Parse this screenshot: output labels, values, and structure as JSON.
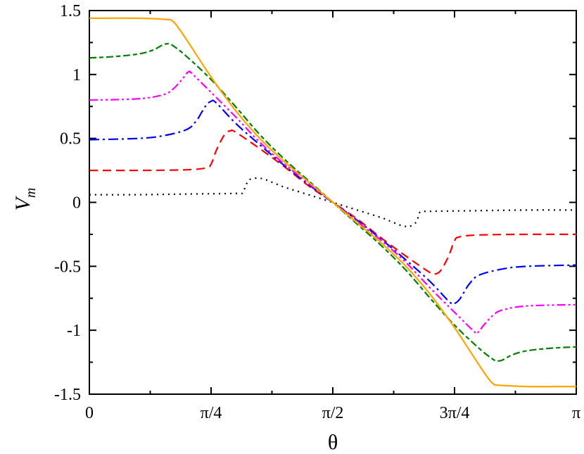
{
  "chart_data": {
    "type": "line",
    "title": "",
    "xlabel": "θ",
    "ylabel_main": "V",
    "ylabel_sub": "m",
    "xlim": [
      0,
      1
    ],
    "ylim": [
      -1.5,
      1.5
    ],
    "x_unit": "π",
    "xticks": [
      {
        "value": 0,
        "label": "0"
      },
      {
        "value": 0.25,
        "label": "π/4"
      },
      {
        "value": 0.5,
        "label": "π/2"
      },
      {
        "value": 0.75,
        "label": "3π/4"
      },
      {
        "value": 1,
        "label": "π"
      }
    ],
    "yticks": [
      {
        "value": 1.5,
        "label": "1.5"
      },
      {
        "value": 1,
        "label": "1"
      },
      {
        "value": 0.5,
        "label": "0.5"
      },
      {
        "value": 0,
        "label": "0"
      },
      {
        "value": -0.5,
        "label": "-0.5"
      },
      {
        "value": -1,
        "label": "-1"
      },
      {
        "value": -1.5,
        "label": "-1.5"
      }
    ],
    "series": [
      {
        "name": "dotted-black",
        "color": "#000000",
        "dash": "2,6",
        "x": [
          0,
          0.1,
          0.2,
          0.3,
          0.315,
          0.32,
          0.325,
          0.33,
          0.345,
          0.36,
          0.38,
          0.4,
          0.45,
          0.5,
          0.55,
          0.6,
          0.62,
          0.64,
          0.655,
          0.66,
          0.67,
          0.675,
          0.68,
          0.7,
          0.8,
          0.9,
          1.0
        ],
        "y": [
          0.06,
          0.06,
          0.065,
          0.07,
          0.075,
          0.12,
          0.16,
          0.18,
          0.19,
          0.18,
          0.15,
          0.12,
          0.06,
          0.0,
          -0.06,
          -0.12,
          -0.15,
          -0.18,
          -0.19,
          -0.185,
          -0.16,
          -0.12,
          -0.075,
          -0.07,
          -0.065,
          -0.06,
          -0.06
        ]
      },
      {
        "name": "dashed-red",
        "color": "#ff0000",
        "dash": "12,7",
        "x": [
          0,
          0.1,
          0.2,
          0.24,
          0.25,
          0.26,
          0.27,
          0.28,
          0.29,
          0.3,
          0.35,
          0.4,
          0.45,
          0.5,
          0.55,
          0.6,
          0.65,
          0.7,
          0.71,
          0.72,
          0.73,
          0.74,
          0.75,
          0.76,
          0.8,
          0.9,
          1.0
        ],
        "y": [
          0.25,
          0.25,
          0.255,
          0.27,
          0.3,
          0.4,
          0.48,
          0.54,
          0.56,
          0.55,
          0.42,
          0.28,
          0.13,
          0.0,
          -0.13,
          -0.28,
          -0.42,
          -0.55,
          -0.56,
          -0.54,
          -0.48,
          -0.4,
          -0.3,
          -0.27,
          -0.255,
          -0.25,
          -0.25
        ]
      },
      {
        "name": "dashdot-blue",
        "color": "#0000ff",
        "dash": "14,5,3,5",
        "x": [
          0,
          0.1,
          0.15,
          0.2,
          0.22,
          0.23,
          0.24,
          0.25,
          0.26,
          0.3,
          0.35,
          0.4,
          0.45,
          0.5,
          0.55,
          0.6,
          0.65,
          0.7,
          0.74,
          0.75,
          0.76,
          0.77,
          0.78,
          0.8,
          0.85,
          0.9,
          1.0
        ],
        "y": [
          0.49,
          0.5,
          0.52,
          0.57,
          0.64,
          0.7,
          0.76,
          0.79,
          0.78,
          0.62,
          0.45,
          0.29,
          0.14,
          0.0,
          -0.14,
          -0.29,
          -0.45,
          -0.62,
          -0.78,
          -0.79,
          -0.76,
          -0.7,
          -0.64,
          -0.57,
          -0.52,
          -0.5,
          -0.49
        ]
      },
      {
        "name": "dashdotdot-magenta",
        "color": "#ff00ff",
        "dash": "12,4,3,4,3,4",
        "x": [
          0,
          0.1,
          0.15,
          0.17,
          0.19,
          0.2,
          0.205,
          0.21,
          0.25,
          0.3,
          0.35,
          0.4,
          0.45,
          0.5,
          0.55,
          0.6,
          0.65,
          0.7,
          0.75,
          0.79,
          0.795,
          0.8,
          0.81,
          0.83,
          0.85,
          0.9,
          1.0
        ],
        "y": [
          0.8,
          0.81,
          0.84,
          0.88,
          0.96,
          1.01,
          1.02,
          1.01,
          0.86,
          0.67,
          0.47,
          0.3,
          0.15,
          0.0,
          -0.15,
          -0.3,
          -0.47,
          -0.67,
          -0.86,
          -1.01,
          -1.02,
          -1.01,
          -0.96,
          -0.88,
          -0.84,
          -0.81,
          -0.8
        ]
      },
      {
        "name": "dashdot-green",
        "color": "#008000",
        "dash": "10,4,6,4",
        "x": [
          0,
          0.05,
          0.1,
          0.13,
          0.15,
          0.16,
          0.17,
          0.2,
          0.25,
          0.3,
          0.35,
          0.4,
          0.45,
          0.5,
          0.55,
          0.6,
          0.65,
          0.7,
          0.75,
          0.8,
          0.83,
          0.84,
          0.85,
          0.87,
          0.9,
          0.95,
          1.0
        ],
        "y": [
          1.13,
          1.14,
          1.16,
          1.19,
          1.23,
          1.24,
          1.23,
          1.14,
          0.96,
          0.75,
          0.53,
          0.34,
          0.17,
          0.0,
          -0.17,
          -0.34,
          -0.53,
          -0.75,
          -0.96,
          -1.14,
          -1.23,
          -1.24,
          -1.23,
          -1.19,
          -1.16,
          -1.14,
          -1.13
        ]
      },
      {
        "name": "solid-orange",
        "color": "#ffa500",
        "dash": "",
        "x": [
          0,
          0.1,
          0.16,
          0.17,
          0.18,
          0.2,
          0.25,
          0.3,
          0.35,
          0.4,
          0.45,
          0.5,
          0.55,
          0.6,
          0.65,
          0.7,
          0.75,
          0.8,
          0.82,
          0.83,
          0.84,
          0.9,
          1.0
        ],
        "y": [
          1.44,
          1.44,
          1.43,
          1.42,
          1.38,
          1.27,
          0.98,
          0.72,
          0.5,
          0.32,
          0.16,
          0.0,
          -0.16,
          -0.32,
          -0.5,
          -0.72,
          -0.98,
          -1.27,
          -1.38,
          -1.42,
          -1.43,
          -1.44,
          -1.44
        ]
      }
    ]
  }
}
